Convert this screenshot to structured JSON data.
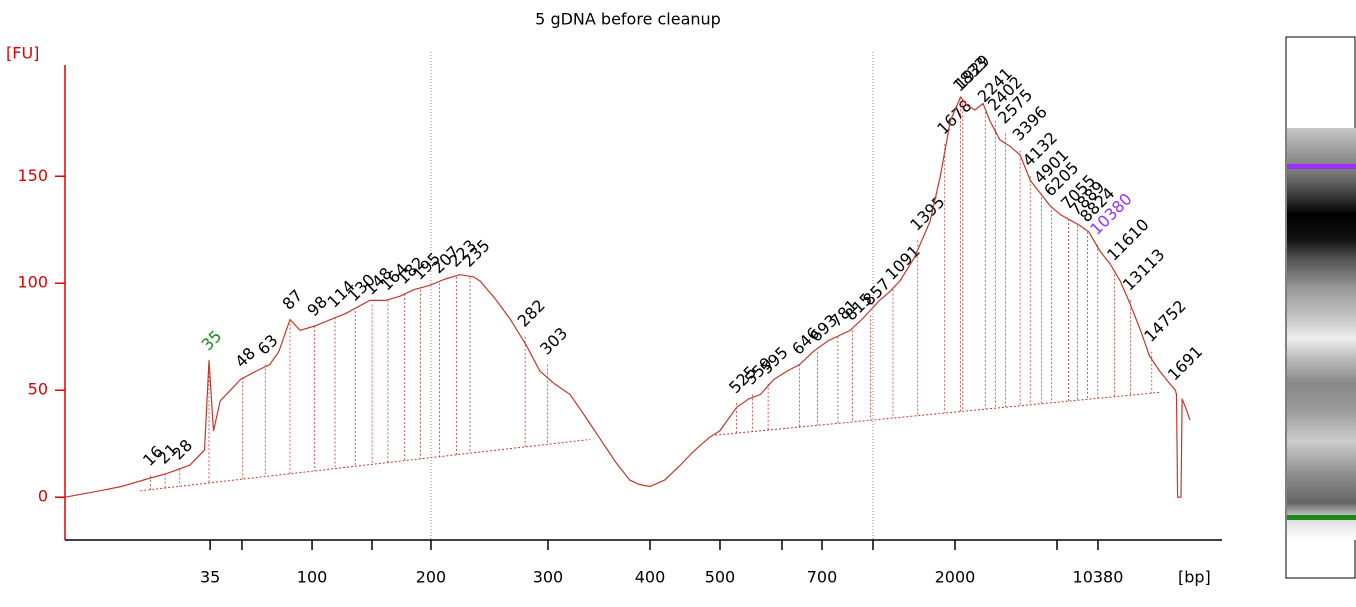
{
  "chart_data": {
    "type": "line",
    "title": "5 gDNA before cleanup",
    "y_label": "[FU]",
    "x_label": "[bp]",
    "xlim": [
      20,
      120
    ],
    "xticks": [
      {
        "value": 32.9,
        "label": "35"
      },
      {
        "value": 35.73,
        "label": null
      },
      {
        "value": 41.96,
        "label": "100"
      },
      {
        "value": 47.29,
        "label": null
      },
      {
        "value": 52.53,
        "label": "200"
      },
      {
        "value": 62.93,
        "label": "300"
      },
      {
        "value": 72.0,
        "label": "400"
      },
      {
        "value": 78.22,
        "label": "500"
      },
      {
        "value": 83.73,
        "label": null
      },
      {
        "value": 87.29,
        "label": "700"
      },
      {
        "value": 91.82,
        "label": null
      },
      {
        "value": 99.11,
        "label": "2000"
      },
      {
        "value": 108.18,
        "label": null
      },
      {
        "value": 111.82,
        "label": "10380"
      }
    ],
    "ylim": [
      -20,
      202
    ],
    "yticks": [
      0,
      50,
      100,
      150
    ],
    "reference_lines": [
      52.53,
      91.82
    ],
    "trace": {
      "color": "#c0392b",
      "x": [
        20,
        23.1,
        25,
        27.6,
        29,
        31.1,
        32.4,
        32.8,
        33.2,
        33.8,
        35.6,
        37,
        38.2,
        39,
        40,
        40.9,
        42.2,
        43.6,
        45,
        47.1,
        48.5,
        49.8,
        51,
        52.4,
        53.8,
        55.1,
        56.3,
        56.9,
        58.2,
        59.6,
        61,
        62.2,
        63.5,
        64.9,
        66.2,
        67.6,
        69,
        70.2,
        71,
        72,
        73.3,
        74.7,
        75.6,
        76.4,
        77.3,
        78.2,
        79.7,
        80.8,
        81.8,
        83,
        84.2,
        85.3,
        86.5,
        87.8,
        89.8,
        91,
        92.4,
        93.3,
        94.2,
        95.5,
        96.9,
        97.8,
        98.7,
        99.2,
        99.6,
        100.2,
        100.9,
        101.6,
        102.2,
        103.1,
        104,
        104.9,
        105.8,
        106.7,
        107.6,
        108.5,
        110.2,
        111,
        112,
        112.9,
        113.8,
        114.7,
        115.6,
        116.4,
        117.3,
        118.2,
        118.7,
        118.8,
        118.9,
        119.2,
        119.3,
        119.6,
        120
      ],
      "values": [
        0,
        3,
        5,
        9,
        11,
        15,
        22,
        64,
        31,
        45,
        55,
        59,
        62,
        68,
        83,
        78,
        80,
        83,
        86,
        92,
        92,
        94,
        97,
        99,
        102,
        104,
        103,
        101,
        93,
        83,
        71,
        59,
        53,
        48,
        38,
        27,
        16,
        8,
        6,
        5,
        8,
        15,
        20,
        24,
        28,
        31,
        42,
        46,
        48,
        55,
        59,
        62,
        68,
        73,
        78,
        84,
        92,
        96,
        101,
        112,
        129,
        150,
        176,
        182,
        187,
        183,
        181,
        184,
        176,
        167,
        164,
        160,
        148,
        142,
        136,
        132,
        127,
        124,
        115,
        109,
        101,
        90,
        78,
        66,
        59,
        53,
        50,
        48,
        0,
        0,
        46,
        42,
        36
      ]
    },
    "baseline": {
      "x": [
        26.7,
        66.7,
        null,
        77.8,
        117.3
      ],
      "values": [
        3,
        27,
        null,
        29,
        49
      ]
    },
    "peaks": {
      "labels": [
        16,
        21,
        28,
        35,
        48,
        63,
        87,
        98,
        114,
        130,
        148,
        164,
        182,
        195,
        207,
        223,
        235,
        282,
        303,
        525,
        559,
        595,
        646,
        693,
        781,
        815,
        857,
        1091,
        1395,
        1678,
        1833,
        1929,
        2241,
        2402,
        2575,
        3396,
        4132,
        4901,
        6205,
        7055,
        7889,
        8824,
        10380,
        11610,
        13113,
        14752,
        1691
      ],
      "x": [
        27.6,
        28.9,
        30.2,
        32.8,
        35.8,
        37.8,
        40,
        42.2,
        44,
        45.8,
        47.3,
        48.7,
        50.2,
        51.6,
        53.3,
        54.8,
        56,
        60.9,
        62.9,
        79.7,
        81.1,
        82.5,
        85.3,
        86.9,
        88.7,
        90,
        91.6,
        93.6,
        95.8,
        98.2,
        99.6,
        99.8,
        101.8,
        102.7,
        103.6,
        104.9,
        105.8,
        106.8,
        107.7,
        109.2,
        110,
        110.9,
        111.8,
        113.3,
        114.7,
        116.6,
        118.7
      ],
      "values": [
        10,
        11,
        13,
        64,
        56,
        62,
        83,
        80,
        84,
        87,
        90,
        92,
        95,
        97,
        100,
        103,
        103,
        75,
        62,
        44,
        48,
        53,
        62,
        68,
        75,
        78,
        85,
        97,
        120,
        165,
        185,
        186,
        180,
        176,
        170,
        162,
        150,
        142,
        136,
        130,
        127,
        124,
        118,
        106,
        92,
        68,
        50
      ],
      "colors": [
        "#000",
        "#000",
        "#000",
        "#1a8a1a",
        "#000",
        "#000",
        "#000",
        "#000",
        "#000",
        "#000",
        "#000",
        "#000",
        "#000",
        "#000",
        "#000",
        "#000",
        "#000",
        "#000",
        "#000",
        "#000",
        "#000",
        "#000",
        "#000",
        "#000",
        "#000",
        "#000",
        "#000",
        "#000",
        "#000",
        "#000",
        "#000",
        "#000",
        "#000",
        "#000",
        "#000",
        "#000",
        "#000",
        "#000",
        "#000",
        "#000",
        "#000",
        "#000",
        "#9b30ff",
        "#000",
        "#000",
        "#000",
        "#000"
      ]
    }
  }
}
